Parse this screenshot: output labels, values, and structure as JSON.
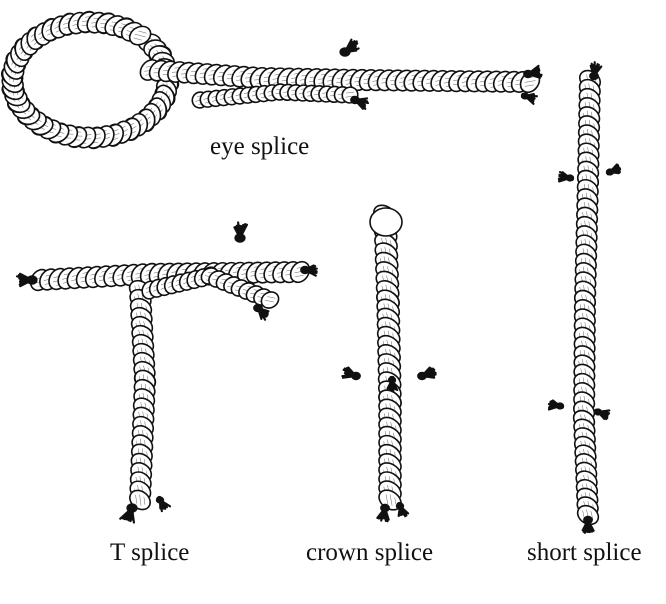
{
  "captions": {
    "eye": "eye splice",
    "t": "T splice",
    "crown": "crown splice",
    "short": "short splice"
  },
  "colors": {
    "ink": "#111111",
    "rope_fill": "#ffffff",
    "hatch": "#222222",
    "strand_end": "#111111"
  },
  "illustrations": [
    "eye-splice-rope",
    "t-splice-rope",
    "crown-splice-rope",
    "short-splice-rope"
  ]
}
